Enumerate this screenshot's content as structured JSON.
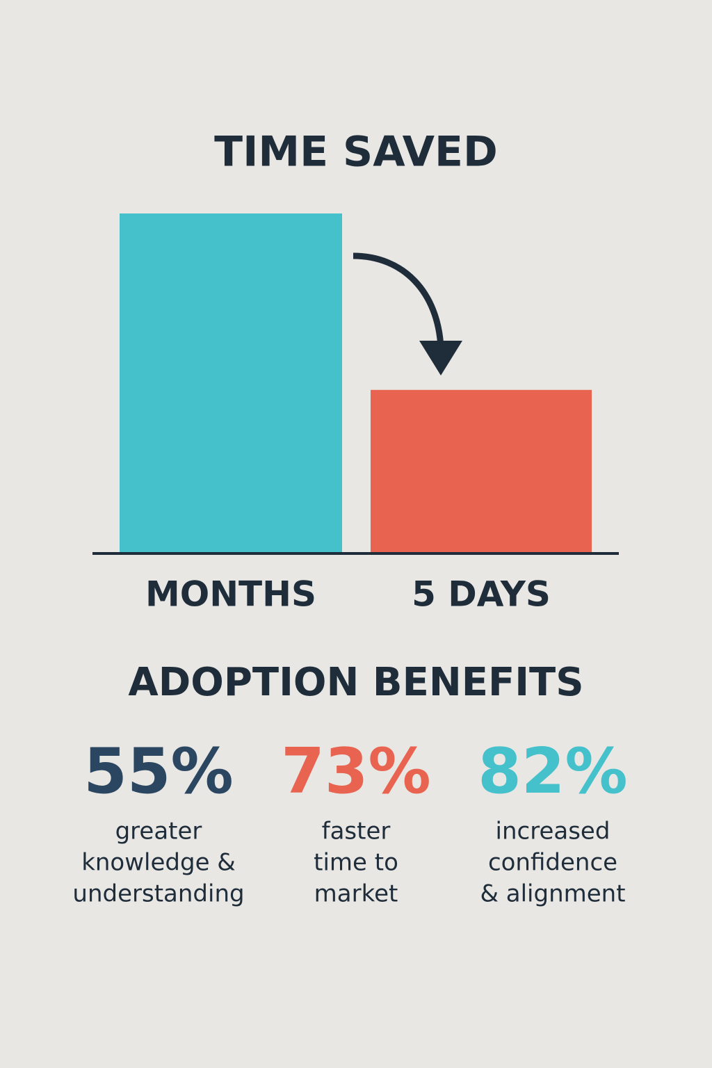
{
  "chart_data": {
    "type": "bar",
    "title": "TIME SAVED",
    "categories": [
      "MONTHS",
      "5 DAYS"
    ],
    "values": [
      100,
      48
    ],
    "colors": [
      "#45c1cb",
      "#e86451"
    ],
    "ylim": [
      0,
      100
    ]
  },
  "benefits": {
    "title": "ADOPTION BENEFITS",
    "items": [
      {
        "value": "55%",
        "color": "#2b4660",
        "caption": [
          "greater",
          "knowledge &",
          "understanding"
        ]
      },
      {
        "value": "73%",
        "color": "#e86451",
        "caption": [
          "faster",
          "time to",
          "market"
        ]
      },
      {
        "value": "82%",
        "color": "#45c1cb",
        "caption": [
          "increased",
          "confidence",
          "& alignment"
        ]
      }
    ]
  }
}
